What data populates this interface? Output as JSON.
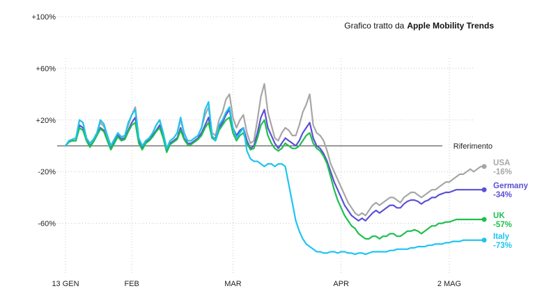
{
  "caption": {
    "prefix": "Grafico tratto da",
    "source": "Apple Mobility Trends"
  },
  "reference_label": "Riferimento",
  "chart_data": {
    "type": "line",
    "yticks": [
      "+100%",
      "+60%",
      "+20%",
      "-20%",
      "-60%"
    ],
    "xticks": [
      {
        "label": "13 GEN",
        "date": "2020-01-13"
      },
      {
        "label": "FEB",
        "date": "2020-02-01"
      },
      {
        "label": "MAR",
        "date": "2020-03-01"
      },
      {
        "label": "APR",
        "date": "2020-04-01"
      },
      {
        "label": "2 MAG",
        "date": "2020-05-02"
      }
    ],
    "ylim": [
      -100,
      100
    ],
    "xlim": [
      "2020-01-11",
      "2020-05-09"
    ],
    "reference_value": 0,
    "start_date": "2020-01-13",
    "series": [
      {
        "name": "USA",
        "end_label": "-16%",
        "color": "#a6a6a6",
        "values": [
          0,
          4,
          5,
          6,
          20,
          18,
          6,
          2,
          5,
          10,
          18,
          15,
          8,
          0,
          5,
          9,
          6,
          8,
          16,
          24,
          30,
          6,
          0,
          4,
          6,
          10,
          16,
          20,
          10,
          -2,
          4,
          6,
          10,
          20,
          10,
          4,
          4,
          6,
          8,
          14,
          24,
          30,
          10,
          8,
          20,
          26,
          36,
          40,
          22,
          14,
          20,
          24,
          10,
          2,
          4,
          20,
          38,
          48,
          26,
          16,
          6,
          4,
          10,
          14,
          12,
          8,
          8,
          16,
          26,
          32,
          40,
          16,
          10,
          8,
          4,
          -4,
          -14,
          -20,
          -26,
          -32,
          -38,
          -44,
          -48,
          -52,
          -54,
          -52,
          -54,
          -50,
          -46,
          -44,
          -46,
          -44,
          -42,
          -40,
          -40,
          -42,
          -44,
          -40,
          -38,
          -36,
          -36,
          -38,
          -40,
          -38,
          -36,
          -34,
          -34,
          -32,
          -30,
          -28,
          -28,
          -26,
          -24,
          -22,
          -22,
          -20,
          -18,
          -20,
          -18,
          -16,
          -16
        ]
      },
      {
        "name": "Germany",
        "end_label": "-34%",
        "color": "#5b4fd6",
        "values": [
          0,
          3,
          4,
          4,
          16,
          14,
          4,
          0,
          3,
          8,
          14,
          12,
          4,
          -2,
          3,
          8,
          5,
          6,
          12,
          18,
          22,
          4,
          -2,
          3,
          5,
          8,
          12,
          16,
          6,
          -4,
          2,
          4,
          6,
          14,
          6,
          2,
          2,
          4,
          6,
          10,
          16,
          22,
          6,
          6,
          14,
          18,
          24,
          28,
          14,
          8,
          12,
          14,
          4,
          -2,
          0,
          10,
          22,
          28,
          14,
          8,
          2,
          -2,
          2,
          6,
          4,
          2,
          0,
          4,
          10,
          14,
          18,
          6,
          0,
          -2,
          -6,
          -12,
          -20,
          -28,
          -34,
          -40,
          -46,
          -50,
          -54,
          -56,
          -58,
          -56,
          -58,
          -55,
          -52,
          -50,
          -52,
          -50,
          -48,
          -46,
          -46,
          -48,
          -48,
          -45,
          -43,
          -42,
          -42,
          -43,
          -45,
          -43,
          -42,
          -40,
          -40,
          -38,
          -37,
          -36,
          -36,
          -35,
          -34,
          -34,
          -34,
          -34,
          -34,
          -34,
          -34,
          -34,
          -34
        ]
      },
      {
        "name": "UK",
        "end_label": "-57%",
        "color": "#1dbf4e",
        "values": [
          0,
          3,
          4,
          4,
          14,
          12,
          4,
          -1,
          3,
          8,
          13,
          11,
          4,
          -3,
          2,
          7,
          4,
          5,
          11,
          16,
          18,
          2,
          -3,
          2,
          4,
          7,
          11,
          14,
          6,
          -5,
          1,
          3,
          5,
          12,
          5,
          1,
          1,
          3,
          5,
          8,
          14,
          18,
          6,
          4,
          12,
          16,
          20,
          22,
          10,
          4,
          8,
          10,
          2,
          -3,
          -2,
          6,
          16,
          20,
          8,
          2,
          -2,
          -4,
          -2,
          2,
          0,
          -2,
          -2,
          0,
          4,
          8,
          10,
          2,
          -2,
          -4,
          -8,
          -14,
          -24,
          -34,
          -42,
          -48,
          -54,
          -58,
          -62,
          -64,
          -68,
          -70,
          -72,
          -72,
          -70,
          -70,
          -72,
          -70,
          -70,
          -68,
          -68,
          -70,
          -70,
          -68,
          -66,
          -66,
          -65,
          -66,
          -68,
          -66,
          -64,
          -62,
          -62,
          -60,
          -60,
          -59,
          -59,
          -58,
          -57,
          -57,
          -57,
          -57,
          -57,
          -57,
          -57,
          -57,
          -57
        ]
      },
      {
        "name": "Italy",
        "end_label": "-73%",
        "color": "#1ec4ef",
        "values": [
          0,
          4,
          5,
          6,
          20,
          18,
          6,
          2,
          5,
          10,
          20,
          17,
          8,
          0,
          5,
          10,
          7,
          8,
          18,
          24,
          28,
          6,
          0,
          4,
          6,
          10,
          16,
          20,
          10,
          -2,
          4,
          6,
          10,
          22,
          10,
          4,
          4,
          6,
          8,
          14,
          28,
          34,
          8,
          4,
          16,
          20,
          26,
          30,
          14,
          6,
          10,
          14,
          -4,
          -10,
          -12,
          -12,
          -14,
          -16,
          -14,
          -14,
          -16,
          -14,
          -14,
          -16,
          -30,
          -44,
          -58,
          -66,
          -72,
          -76,
          -78,
          -80,
          -82,
          -82,
          -83,
          -83,
          -82,
          -82,
          -83,
          -82,
          -82,
          -83,
          -83,
          -84,
          -83,
          -83,
          -84,
          -83,
          -82,
          -82,
          -82,
          -82,
          -82,
          -81,
          -81,
          -80,
          -80,
          -80,
          -80,
          -79,
          -79,
          -78,
          -78,
          -78,
          -77,
          -77,
          -76,
          -76,
          -76,
          -75,
          -75,
          -74,
          -74,
          -74,
          -73,
          -73,
          -73,
          -73,
          -73,
          -73,
          -73
        ]
      }
    ]
  }
}
